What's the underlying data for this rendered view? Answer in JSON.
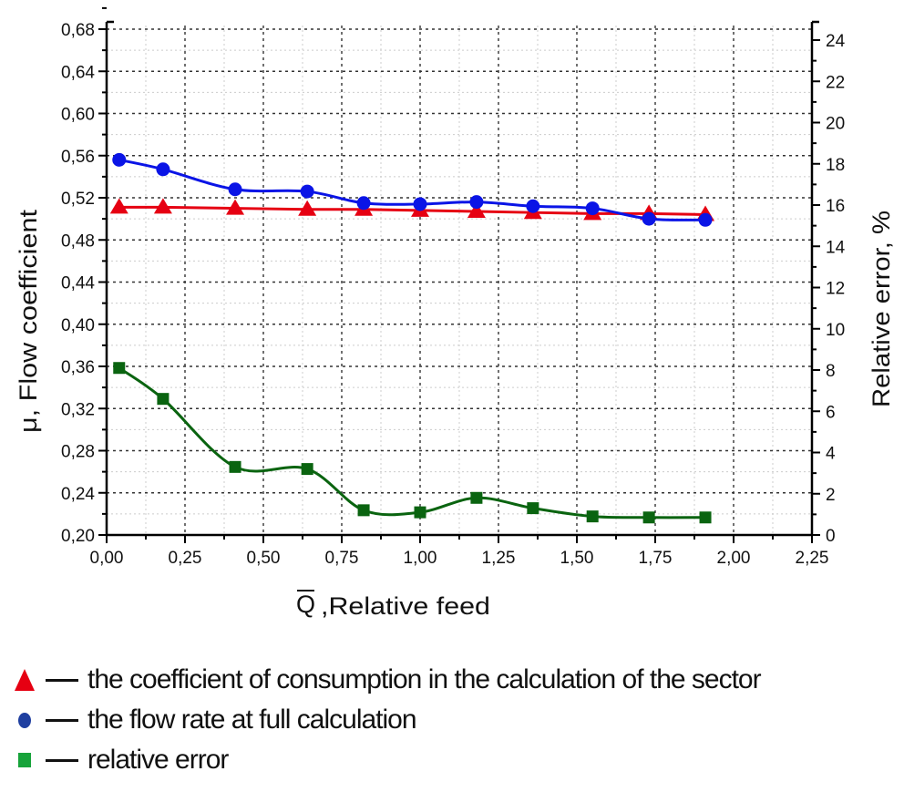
{
  "chart_data": {
    "type": "line",
    "title": "",
    "xlabel_symbol": "Q",
    "xlabel": "Relative feed",
    "ylabel": "μ, Flow coefficient",
    "y2label": "Relative error, %",
    "xlim": [
      0,
      2.25
    ],
    "ylim": [
      0.2,
      0.7
    ],
    "y2lim": [
      0,
      25
    ],
    "grid": true,
    "x_ticks": [
      "0,00",
      "0,25",
      "0,50",
      "0,75",
      "1,00",
      "1,25",
      "1,50",
      "1,75",
      "2,00",
      "2,25"
    ],
    "x_tick_values": [
      0,
      0.25,
      0.5,
      0.75,
      1.0,
      1.25,
      1.5,
      1.75,
      2.0,
      2.25
    ],
    "y_ticks": [
      "0,20",
      "0,24",
      "0,28",
      "0,32",
      "0,36",
      "0,40",
      "0,44",
      "0,48",
      "0,52",
      "0,56",
      "0,60",
      "0,64",
      "0,68"
    ],
    "y_tick_values": [
      0.2,
      0.24,
      0.28,
      0.32,
      0.36,
      0.4,
      0.44,
      0.48,
      0.52,
      0.56,
      0.6,
      0.64,
      0.68
    ],
    "y2_ticks": [
      "0",
      "2",
      "4",
      "6",
      "8",
      "10",
      "12",
      "14",
      "16",
      "18",
      "20",
      "22",
      "24"
    ],
    "y2_tick_values": [
      0,
      2,
      4,
      6,
      8,
      10,
      12,
      14,
      16,
      18,
      20,
      22,
      24
    ],
    "x": [
      0.04,
      0.18,
      0.41,
      0.64,
      0.82,
      1.0,
      1.18,
      1.36,
      1.55,
      1.73,
      1.91
    ],
    "series": [
      {
        "name": "the coefficient of consumption in the calculation of the sector",
        "axis": "left",
        "marker": "triangle",
        "color": "#e60012",
        "values": [
          0.511,
          0.511,
          0.51,
          0.509,
          0.509,
          0.508,
          0.507,
          0.506,
          0.505,
          0.505,
          0.504
        ]
      },
      {
        "name": "the flow rate at full calculation",
        "axis": "left",
        "marker": "circle",
        "color": "#0a14e6",
        "values": [
          0.556,
          0.547,
          0.528,
          0.526,
          0.515,
          0.514,
          0.516,
          0.512,
          0.51,
          0.5,
          0.499
        ]
      },
      {
        "name": "relative error",
        "axis": "right",
        "marker": "square",
        "color": "#0a6410",
        "values": [
          8.1,
          6.6,
          3.3,
          3.2,
          1.2,
          1.1,
          1.8,
          1.3,
          0.9,
          0.85,
          0.85
        ]
      }
    ]
  },
  "legend": {
    "items": [
      {
        "label": "the coefficient of consumption in the calculation of the sector",
        "symbol": "red-triangle"
      },
      {
        "label": "the flow rate at full calculation",
        "symbol": "blue-circle"
      },
      {
        "label": "relative error",
        "symbol": "green-square"
      }
    ]
  }
}
